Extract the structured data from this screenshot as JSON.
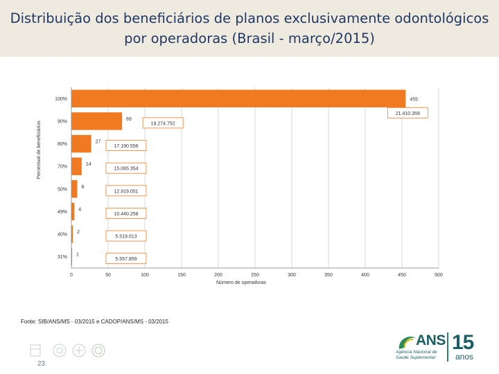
{
  "header": {
    "title_line1": "Distribuição dos beneficiários de planos exclusivamente odontológicos",
    "title_line2": "por operadoras (Brasil - março/2015)"
  },
  "chart_data": {
    "type": "bar",
    "orientation": "horizontal",
    "categories": [
      "100%",
      "90%",
      "80%",
      "70%",
      "50%",
      "49%",
      "40%",
      "31%"
    ],
    "series": [
      {
        "name": "Número de operadoras",
        "values": [
          455,
          69,
          27,
          14,
          8,
          4,
          2,
          1
        ]
      }
    ],
    "beneficiaries": [
      "21.410.359",
      "19.274.752",
      "17.190.556",
      "15.065.354",
      "12.919.051",
      "10.440.258",
      "5.519.013",
      "5.557.859"
    ],
    "xlabel": "Número de operadoras",
    "ylabel": "Percentual de beneficiários",
    "xlim": [
      0,
      500
    ],
    "xticks": [
      0,
      50,
      100,
      150,
      200,
      250,
      300,
      350,
      400,
      450,
      500
    ],
    "grid": "vertical",
    "bar_color": "#f07a22"
  },
  "footer": {
    "source": "Fonte: SIB/ANS/MS - 03/2015 e CADOP/ANS/MS - 03/2015",
    "page_number": "23",
    "logo_name": "ANS",
    "logo_subtitle_line1": "Agência Nacional de",
    "logo_subtitle_line2": "Saúde Suplementar",
    "anniversary_number": "15",
    "anniversary_label": "anos"
  }
}
